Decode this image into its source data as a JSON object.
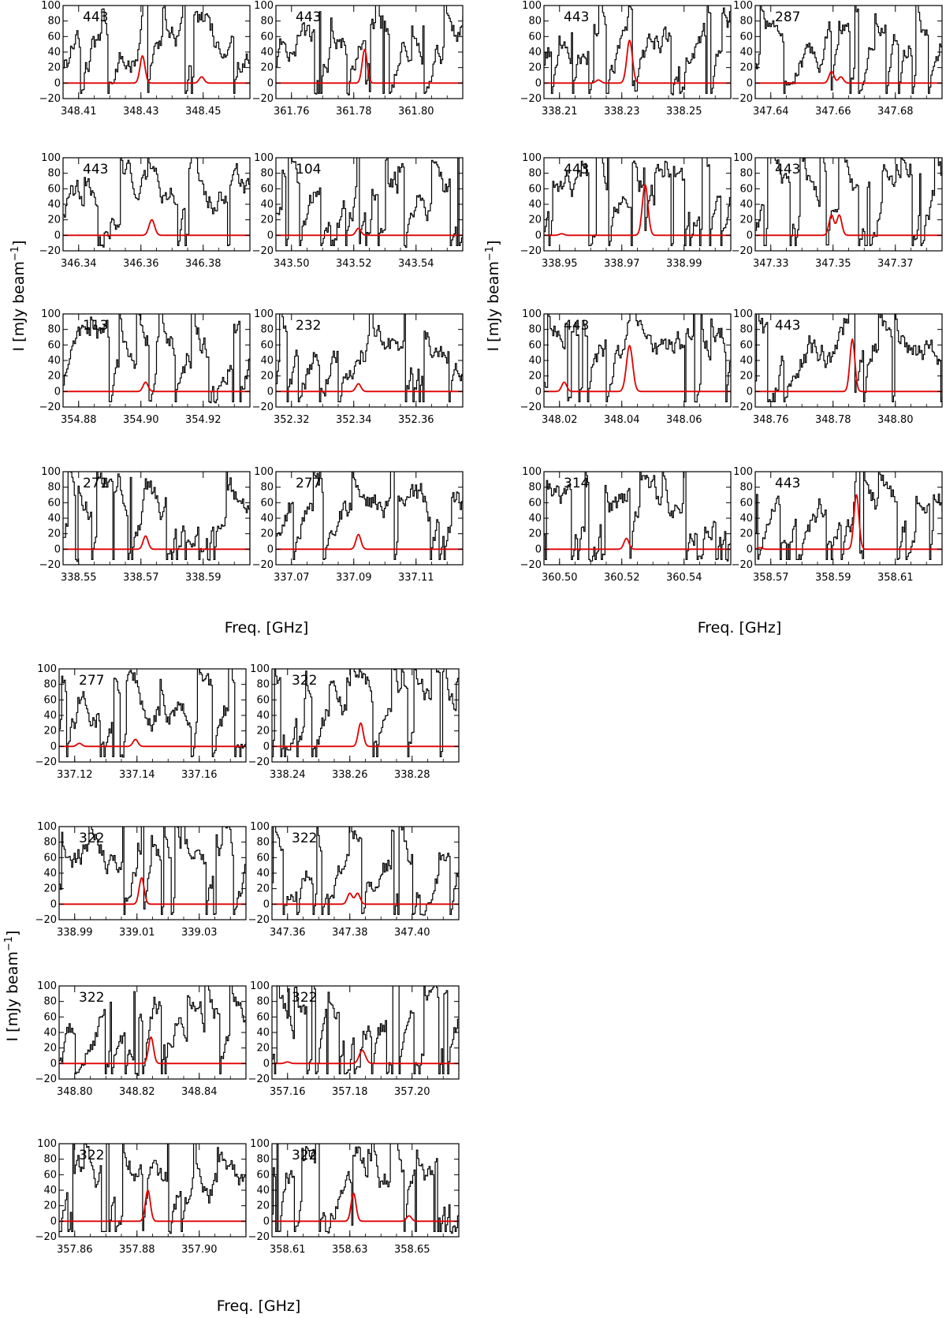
{
  "figure": {
    "xlabel": "Freq. [GHz]",
    "ylabel_main": "I [mJy beam",
    "ylabel_sup": "−1",
    "ylabel_close": "]",
    "colors": {
      "data": "#000000",
      "model": "#e00000",
      "frame": "#000000"
    }
  },
  "chart_data": [
    {
      "type": "line",
      "title": "443",
      "xlim": [
        348.405,
        348.465
      ],
      "ylim": [
        -20,
        100
      ],
      "xticks": [
        "348.41",
        "348.43",
        "348.45"
      ],
      "yticks": [
        "100",
        "80",
        "60",
        "40",
        "20",
        "0",
        "−20"
      ],
      "series": [
        {
          "name": "",
          "values": []
        },
        {
          "name": "",
          "peaks": [
            {
              "x": 348.4305,
              "amp": 35,
              "sigma": 0.0008
            },
            {
              "x": 348.4495,
              "amp": 8,
              "sigma": 0.0008
            }
          ]
        }
      ]
    },
    {
      "type": "line",
      "title": "443",
      "xlim": [
        361.755,
        361.815
      ],
      "ylim": [
        -20,
        100
      ],
      "xticks": [
        "361.76",
        "361.78",
        "361.80"
      ],
      "yticks": [
        "100",
        "80",
        "60",
        "40",
        "20",
        "0",
        "−20"
      ],
      "series": [
        {
          "name": "",
          "values": []
        },
        {
          "name": "",
          "peaks": [
            {
              "x": 361.7835,
              "amp": 43,
              "sigma": 0.0008
            }
          ]
        }
      ]
    },
    {
      "type": "line",
      "title": "443",
      "xlim": [
        338.205,
        338.265
      ],
      "ylim": [
        -20,
        100
      ],
      "xticks": [
        "338.21",
        "338.23",
        "338.25"
      ],
      "yticks": [
        "100",
        "80",
        "60",
        "40",
        "20",
        "0",
        "−20"
      ],
      "series": [
        {
          "name": "",
          "values": []
        },
        {
          "name": "",
          "peaks": [
            {
              "x": 338.2325,
              "amp": 55,
              "sigma": 0.0009
            },
            {
              "x": 338.2225,
              "amp": 4,
              "sigma": 0.0008
            }
          ]
        }
      ]
    },
    {
      "type": "line",
      "title": "287",
      "xlim": [
        347.635,
        347.695
      ],
      "ylim": [
        -20,
        100
      ],
      "xticks": [
        "347.64",
        "347.66",
        "347.68"
      ],
      "yticks": [
        "100",
        "80",
        "60",
        "40",
        "20",
        "0",
        "−20"
      ],
      "series": [
        {
          "name": "",
          "values": []
        },
        {
          "name": "",
          "peaks": [
            {
              "x": 347.6595,
              "amp": 15,
              "sigma": 0.0008
            },
            {
              "x": 347.6625,
              "amp": 8,
              "sigma": 0.0008
            }
          ]
        }
      ]
    },
    {
      "type": "line",
      "title": "443",
      "xlim": [
        346.335,
        346.395
      ],
      "ylim": [
        -20,
        100
      ],
      "xticks": [
        "346.34",
        "346.36",
        "346.38"
      ],
      "yticks": [
        "100",
        "80",
        "60",
        "40",
        "20",
        "0",
        "−20"
      ],
      "series": [
        {
          "name": "",
          "values": []
        },
        {
          "name": "",
          "peaks": [
            {
              "x": 346.3635,
              "amp": 20,
              "sigma": 0.0009
            }
          ]
        }
      ]
    },
    {
      "type": "line",
      "title": "104",
      "xlim": [
        343.495,
        343.555
      ],
      "ylim": [
        -20,
        100
      ],
      "xticks": [
        "343.50",
        "343.52",
        "343.54"
      ],
      "yticks": [
        "100",
        "80",
        "60",
        "40",
        "20",
        "0",
        "−20"
      ],
      "series": [
        {
          "name": "",
          "values": []
        },
        {
          "name": "",
          "peaks": [
            {
              "x": 343.5215,
              "amp": 9,
              "sigma": 0.0008
            }
          ]
        }
      ]
    },
    {
      "type": "line",
      "title": "443",
      "xlim": [
        338.945,
        339.005
      ],
      "ylim": [
        -20,
        100
      ],
      "xticks": [
        "338.95",
        "338.97",
        "338.99"
      ],
      "yticks": [
        "100",
        "80",
        "60",
        "40",
        "20",
        "0",
        "−20"
      ],
      "series": [
        {
          "name": "",
          "values": []
        },
        {
          "name": "",
          "peaks": [
            {
              "x": 338.9775,
              "amp": 65,
              "sigma": 0.0009
            },
            {
              "x": 338.9507,
              "amp": 2,
              "sigma": 0.0008
            }
          ]
        }
      ]
    },
    {
      "type": "line",
      "title": "443",
      "xlim": [
        347.325,
        347.385
      ],
      "ylim": [
        -20,
        100
      ],
      "xticks": [
        "347.33",
        "347.35",
        "347.37"
      ],
      "yticks": [
        "100",
        "80",
        "60",
        "40",
        "20",
        "0",
        "−20"
      ],
      "series": [
        {
          "name": "",
          "values": []
        },
        {
          "name": "",
          "peaks": [
            {
              "x": 347.3495,
              "amp": 26,
              "sigma": 0.0008
            },
            {
              "x": 347.352,
              "amp": 26,
              "sigma": 0.0008
            }
          ]
        }
      ]
    },
    {
      "type": "line",
      "title": "113",
      "xlim": [
        354.875,
        354.935
      ],
      "ylim": [
        -20,
        100
      ],
      "xticks": [
        "354.88",
        "354.90",
        "354.92"
      ],
      "yticks": [
        "100",
        "80",
        "60",
        "40",
        "20",
        "0",
        "−20"
      ],
      "series": [
        {
          "name": "",
          "values": []
        },
        {
          "name": "",
          "peaks": [
            {
              "x": 354.9015,
              "amp": 12,
              "sigma": 0.0008
            }
          ]
        }
      ]
    },
    {
      "type": "line",
      "title": "232",
      "xlim": [
        352.315,
        352.375
      ],
      "ylim": [
        -20,
        100
      ],
      "xticks": [
        "352.32",
        "352.34",
        "352.36"
      ],
      "yticks": [
        "100",
        "80",
        "60",
        "40",
        "20",
        "0",
        "−20"
      ],
      "series": [
        {
          "name": "",
          "values": []
        },
        {
          "name": "",
          "peaks": [
            {
              "x": 352.3415,
              "amp": 10,
              "sigma": 0.0008
            }
          ]
        }
      ]
    },
    {
      "type": "line",
      "title": "443",
      "xlim": [
        348.015,
        348.075
      ],
      "ylim": [
        -20,
        100
      ],
      "xticks": [
        "348.02",
        "348.04",
        "348.06"
      ],
      "yticks": [
        "100",
        "80",
        "60",
        "40",
        "20",
        "0",
        "−20"
      ],
      "series": [
        {
          "name": "",
          "values": []
        },
        {
          "name": "",
          "peaks": [
            {
              "x": 348.0425,
              "amp": 59,
              "sigma": 0.001
            },
            {
              "x": 348.0215,
              "amp": 12,
              "sigma": 0.0008
            }
          ]
        }
      ]
    },
    {
      "type": "line",
      "title": "443",
      "xlim": [
        348.755,
        348.815
      ],
      "ylim": [
        -20,
        100
      ],
      "xticks": [
        "348.76",
        "348.78",
        "348.80"
      ],
      "yticks": [
        "100",
        "80",
        "60",
        "40",
        "20",
        "0",
        "−20"
      ],
      "series": [
        {
          "name": "",
          "values": []
        },
        {
          "name": "",
          "peaks": [
            {
              "x": 348.7862,
              "amp": 67,
              "sigma": 0.0008
            }
          ]
        }
      ]
    },
    {
      "type": "line",
      "title": "271",
      "xlim": [
        338.545,
        338.605
      ],
      "ylim": [
        -20,
        100
      ],
      "xticks": [
        "338.55",
        "338.57",
        "338.59"
      ],
      "yticks": [
        "100",
        "80",
        "60",
        "40",
        "20",
        "0",
        "−20"
      ],
      "series": [
        {
          "name": "",
          "values": []
        },
        {
          "name": "",
          "peaks": [
            {
              "x": 338.5715,
              "amp": 17,
              "sigma": 0.0008
            }
          ]
        }
      ]
    },
    {
      "type": "line",
      "title": "277",
      "xlim": [
        337.065,
        337.125
      ],
      "ylim": [
        -20,
        100
      ],
      "xticks": [
        "337.07",
        "337.09",
        "337.11"
      ],
      "yticks": [
        "100",
        "80",
        "60",
        "40",
        "20",
        "0",
        "−20"
      ],
      "series": [
        {
          "name": "",
          "values": []
        },
        {
          "name": "",
          "peaks": [
            {
              "x": 337.0915,
              "amp": 19,
              "sigma": 0.0008
            }
          ]
        }
      ]
    },
    {
      "type": "line",
      "title": "314",
      "xlim": [
        360.495,
        360.555
      ],
      "ylim": [
        -20,
        100
      ],
      "xticks": [
        "360.50",
        "360.52",
        "360.54"
      ],
      "yticks": [
        "100",
        "80",
        "60",
        "40",
        "20",
        "0",
        "−20"
      ],
      "series": [
        {
          "name": "",
          "values": []
        },
        {
          "name": "",
          "peaks": [
            {
              "x": 360.5215,
              "amp": 14,
              "sigma": 0.0008
            }
          ]
        }
      ]
    },
    {
      "type": "line",
      "title": "443",
      "xlim": [
        358.565,
        358.625
      ],
      "ylim": [
        -20,
        100
      ],
      "xticks": [
        "358.57",
        "358.59",
        "358.61"
      ],
      "yticks": [
        "100",
        "80",
        "60",
        "40",
        "20",
        "0",
        "−20"
      ],
      "series": [
        {
          "name": "",
          "values": []
        },
        {
          "name": "",
          "peaks": [
            {
              "x": 358.5975,
              "amp": 70,
              "sigma": 0.0008
            },
            {
              "x": 358.5665,
              "amp": 2,
              "sigma": 0.0008
            }
          ]
        }
      ]
    },
    {
      "type": "line",
      "title": "277",
      "xlim": [
        337.115,
        337.175
      ],
      "ylim": [
        -20,
        100
      ],
      "xticks": [
        "337.12",
        "337.14",
        "337.16"
      ],
      "yticks": [
        "100",
        "80",
        "60",
        "40",
        "20",
        "0",
        "−20"
      ],
      "series": [
        {
          "name": "",
          "values": []
        },
        {
          "name": "",
          "peaks": [
            {
              "x": 337.1395,
              "amp": 9,
              "sigma": 0.0008
            },
            {
              "x": 337.1215,
              "amp": 4,
              "sigma": 0.0008
            }
          ]
        }
      ]
    },
    {
      "type": "line",
      "title": "322",
      "xlim": [
        338.235,
        338.295
      ],
      "ylim": [
        -20,
        100
      ],
      "xticks": [
        "338.24",
        "338.26",
        "338.28"
      ],
      "yticks": [
        "100",
        "80",
        "60",
        "40",
        "20",
        "0",
        "−20"
      ],
      "series": [
        {
          "name": "",
          "values": []
        },
        {
          "name": "",
          "peaks": [
            {
              "x": 338.2635,
              "amp": 30,
              "sigma": 0.0008
            }
          ]
        }
      ]
    },
    {
      "type": "line",
      "title": "322",
      "xlim": [
        338.985,
        339.045
      ],
      "ylim": [
        -20,
        100
      ],
      "xticks": [
        "338.99",
        "339.01",
        "339.03"
      ],
      "yticks": [
        "100",
        "80",
        "60",
        "40",
        "20",
        "0",
        "−20"
      ],
      "series": [
        {
          "name": "",
          "values": []
        },
        {
          "name": "",
          "peaks": [
            {
              "x": 339.0115,
              "amp": 34,
              "sigma": 0.0008
            }
          ]
        }
      ]
    },
    {
      "type": "line",
      "title": "322",
      "xlim": [
        347.355,
        347.415
      ],
      "ylim": [
        -20,
        100
      ],
      "xticks": [
        "347.36",
        "347.38",
        "347.40"
      ],
      "yticks": [
        "100",
        "80",
        "60",
        "40",
        "20",
        "0",
        "−20"
      ],
      "series": [
        {
          "name": "",
          "values": []
        },
        {
          "name": "",
          "peaks": [
            {
              "x": 347.38,
              "amp": 14,
              "sigma": 0.0008
            },
            {
              "x": 347.3825,
              "amp": 14,
              "sigma": 0.0008
            }
          ]
        }
      ]
    },
    {
      "type": "line",
      "title": "322",
      "xlim": [
        348.795,
        348.855
      ],
      "ylim": [
        -20,
        100
      ],
      "xticks": [
        "348.80",
        "348.82",
        "348.84"
      ],
      "yticks": [
        "100",
        "80",
        "60",
        "40",
        "20",
        "0",
        "−20"
      ],
      "series": [
        {
          "name": "",
          "values": []
        },
        {
          "name": "",
          "peaks": [
            {
              "x": 348.8245,
              "amp": 34,
              "sigma": 0.0008
            }
          ]
        }
      ]
    },
    {
      "type": "line",
      "title": "322",
      "xlim": [
        357.155,
        357.215
      ],
      "ylim": [
        -20,
        100
      ],
      "xticks": [
        "357.16",
        "357.18",
        "357.20"
      ],
      "yticks": [
        "100",
        "80",
        "60",
        "40",
        "20",
        "0",
        "−20"
      ],
      "series": [
        {
          "name": "",
          "values": []
        },
        {
          "name": "",
          "peaks": [
            {
              "x": 357.184,
              "amp": 17,
              "sigma": 0.001
            },
            {
              "x": 357.16,
              "amp": 2,
              "sigma": 0.0008
            }
          ]
        }
      ]
    },
    {
      "type": "line",
      "title": "322",
      "xlim": [
        357.855,
        357.915
      ],
      "ylim": [
        -20,
        100
      ],
      "xticks": [
        "357.86",
        "357.88",
        "357.90"
      ],
      "yticks": [
        "100",
        "80",
        "60",
        "40",
        "20",
        "0",
        "−20"
      ],
      "series": [
        {
          "name": "",
          "values": []
        },
        {
          "name": "",
          "peaks": [
            {
              "x": 357.8835,
              "amp": 40,
              "sigma": 0.0008
            }
          ]
        }
      ]
    },
    {
      "type": "line",
      "title": "322",
      "xlim": [
        358.605,
        358.665
      ],
      "ylim": [
        -20,
        100
      ],
      "xticks": [
        "358.61",
        "358.63",
        "358.65"
      ],
      "yticks": [
        "100",
        "80",
        "60",
        "40",
        "20",
        "0",
        "−20"
      ],
      "series": [
        {
          "name": "",
          "values": []
        },
        {
          "name": "",
          "peaks": [
            {
              "x": 358.6312,
              "amp": 36,
              "sigma": 0.0008
            },
            {
              "x": 358.649,
              "amp": 7,
              "sigma": 0.0008
            }
          ]
        }
      ]
    }
  ]
}
